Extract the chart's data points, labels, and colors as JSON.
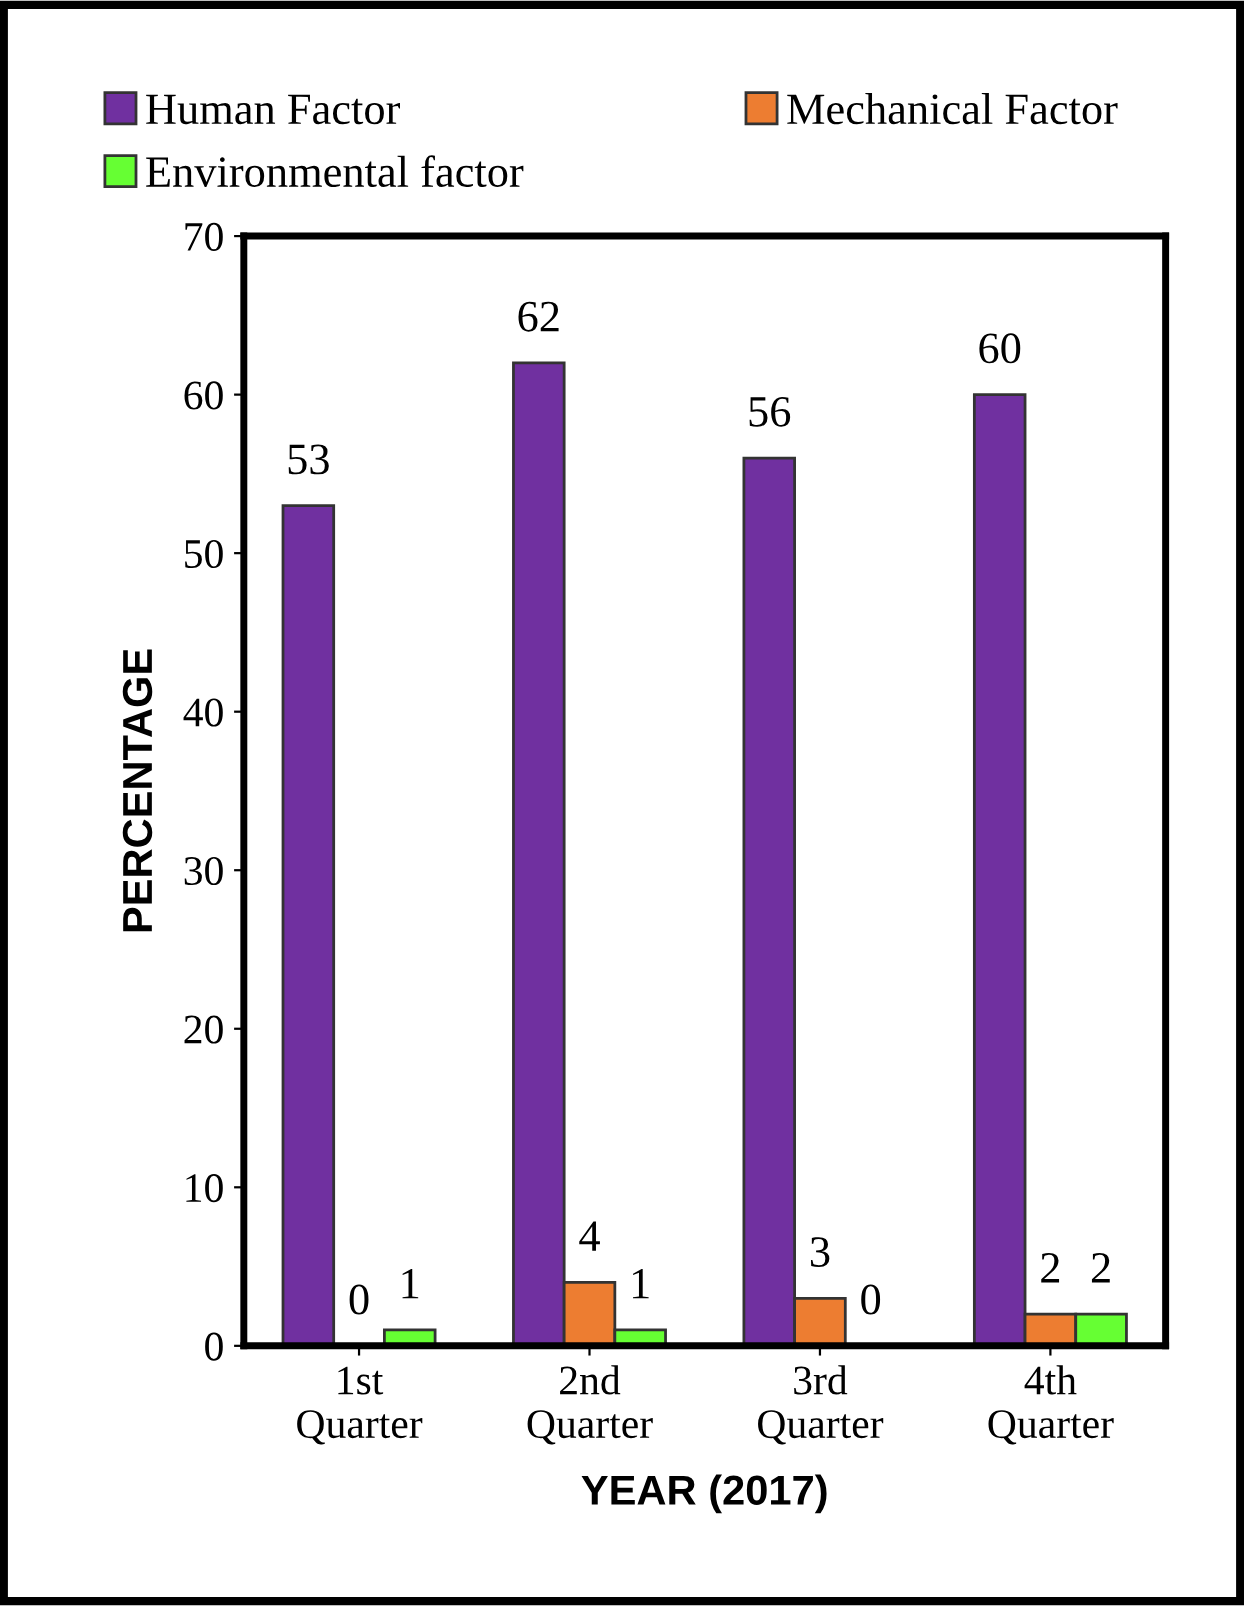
{
  "chart_data": {
    "type": "bar",
    "xlabel": "YEAR (2017)",
    "ylabel": "PERCENTAGE",
    "categories": [
      "1st\nQuarter",
      "2nd\nQuarter",
      "3rd\nQuarter",
      "4th\nQuarter"
    ],
    "series": [
      {
        "name": "Human Factor",
        "color": "#7030a0",
        "values": [
          53,
          62,
          56,
          60
        ]
      },
      {
        "name": "Mechanical Factor",
        "color": "#ed7d31",
        "values": [
          0,
          4,
          3,
          2
        ]
      },
      {
        "name": "Environmental factor",
        "color": "#66ff33",
        "values": [
          1,
          1,
          0,
          2
        ]
      }
    ],
    "ylim": [
      0,
      70
    ],
    "yticks": [
      0,
      10,
      20,
      30,
      40,
      50,
      60,
      70
    ],
    "grid": false,
    "legend": "top",
    "data_labels": true
  }
}
